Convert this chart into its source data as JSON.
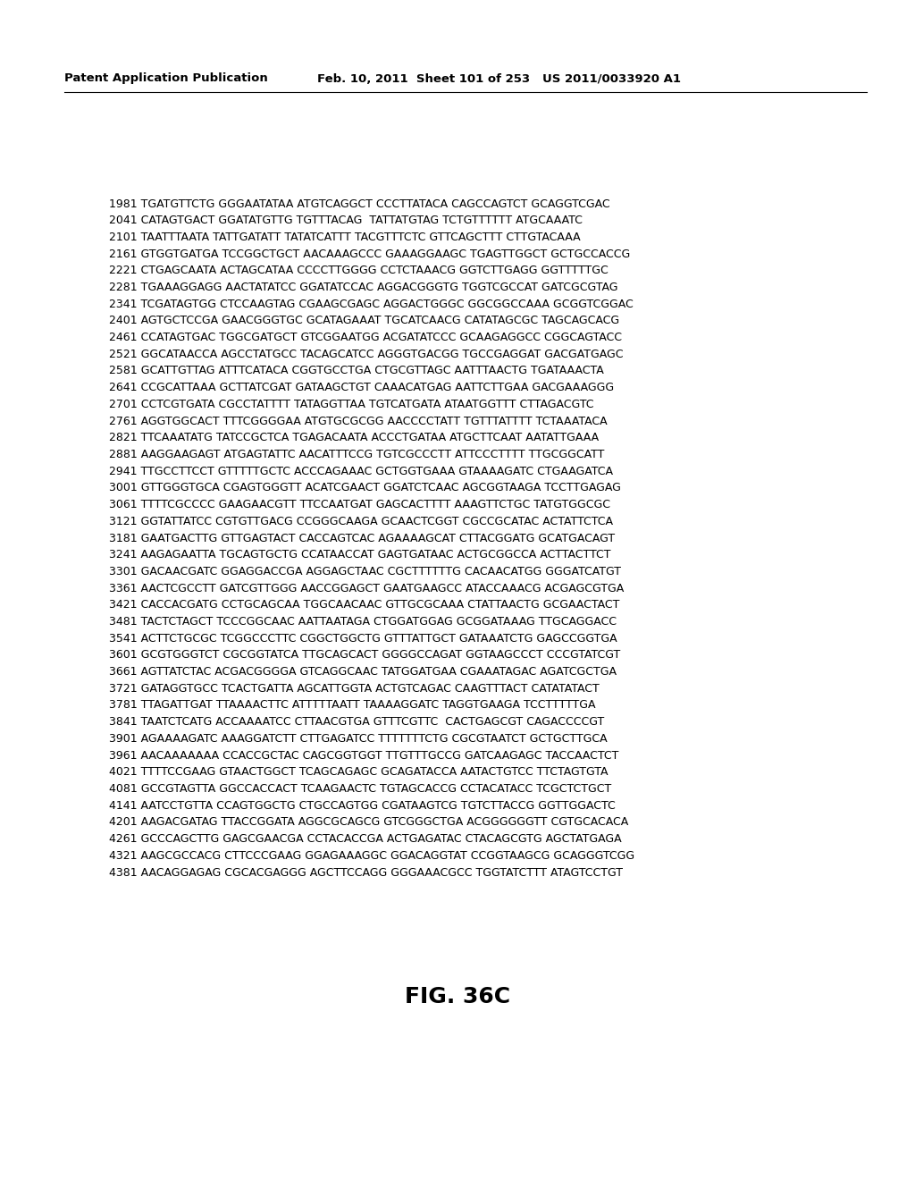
{
  "header_left": "Patent Application Publication",
  "header_middle": "Feb. 10, 2011  Sheet 101 of 253   US 2011/0033920 A1",
  "figure_label": "FIG. 36C",
  "background_color": "#ffffff",
  "text_color": "#000000",
  "sequence_lines": [
    "1981 TGATGTTCTG GGGAATATAA ATGTCAGGCT CCCTTATACA CAGCCAGTCT GCAGGTCGAC",
    "2041 CATAGTGACT GGATATGTTG TGTTTACAG  TATTATGTAG TCTGTTTTTT ATGCAAATC",
    "2101 TAATTTAATA TATTGATATT TATATCATTT TACGTTTCTC GTTCAGCTTT CTTGTACAAA",
    "2161 GTGGTGATGA TCCGGCTGCT AACAAAGCCC GAAAGGAAGC TGAGTTGGCT GCTGCCACCG",
    "2221 CTGAGCAATA ACTAGCATAA CCCCTTGGGG CCTCTAAACG GGTCTTGAGG GGTTTTTGC",
    "2281 TGAAAGGAGG AACTATATCC GGATATCCAC AGGACGGGTG TGGTCGCCAT GATCGCGTAG",
    "2341 TCGATAGTGG CTCCAAGTAG CGAAGCGAGC AGGACTGGGC GGCGGCCAAA GCGGTCGGAC",
    "2401 AGTGCTCCGA GAACGGGTGC GCATAGAAAT TGCATCAACG CATATAGCGC TAGCAGCACG",
    "2461 CCATAGTGAC TGGCGATGCT GTCGGAATGG ACGATATCCC GCAAGAGGCC CGGCAGTACC",
    "2521 GGCATAACCA AGCCTATGCC TACAGCATCC AGGGTGACGG TGCCGAGGAT GACGATGAGC",
    "2581 GCATTGTTAG ATTTCATACA CGGTGCCTGA CTGCGTTAGC AATTTAACTG TGATAAACTA",
    "2641 CCGCATTAAA GCTTATCGAT GATAAGCTGT CAAACATGAG AATTCTTGAA GACGAAAGGG",
    "2701 CCTCGTGATA CGCCTATTTT TATAGGTTAA TGTCATGATA ATAATGGTTT CTTAGACGTC",
    "2761 AGGTGGCACT TTTCGGGGAA ATGTGCGCGG AACCCCTATT TGTTTATTTT TCTAAATACA",
    "2821 TTCAAATATG TATCCGCTCA TGAGACAATA ACCCTGATAA ATGCTTCAAT AATATTGAAA",
    "2881 AAGGAAGAGT ATGAGTATTC AACATTTCCG TGTCGCCCTT ATTCCCTTTT TTGCGGCATT",
    "2941 TTGCCTTCCT GTTTTTGCTC ACCCAGAAAC GCTGGTGAAA GTAAAAGATC CTGAAGATCA",
    "3001 GTTGGGTGCA CGAGTGGGTT ACATCGAACT GGATCTCAAC AGCGGTAAGA TCCTTGAGAG",
    "3061 TTTTCGCCCC GAAGAACGTT TTCCAATGAT GAGCACTTTT AAAGTTCTGC TATGTGGCGC",
    "3121 GGTATTATCC CGTGTTGACG CCGGGCAAGA GCAACTCGGT CGCCGCATAC ACTATTCTCA",
    "3181 GAATGACTTG GTTGAGTACT CACCAGTCAC AGAAAAGCAT CTTACGGATG GCATGACAGT",
    "3241 AAGAGAATTA TGCAGTGCTG CCATAACCAT GAGTGATAAC ACTGCGGCCA ACTTACTTCT",
    "3301 GACAACGATC GGAGGACCGA AGGAGCTAAC CGCTTTTTTG CACAACATGG GGGATCATGT",
    "3361 AACTCGCCTT GATCGTTGGG AACCGGAGCT GAATGAAGCC ATACCAAACG ACGAGCGTGA",
    "3421 CACCACGATG CCTGCAGCAA TGGCAACAAC GTTGCGCAAA CTATTAACTG GCGAACTACT",
    "3481 TACTCTAGCT TCCCGGCAAC AATTAATAGA CTGGATGGAG GCGGATAAAG TTGCAGGACC",
    "3541 ACTTCTGCGC TCGGCCCTTC CGGCTGGCTG GTTTATTGCT GATAAATCTG GAGCCGGTGA",
    "3601 GCGTGGGTCT CGCGGTATCA TTGCAGCACT GGGGCCAGAT GGTAAGCCCT CCCGTATCGT",
    "3661 AGTTATCTAC ACGACGGGGA GTCAGGCAAC TATGGATGAA CGAAATAGAC AGATCGCTGA",
    "3721 GATAGGTGCC TCACTGATTA AGCATTGGTA ACTGTCAGAC CAAGTTTACT CATATATACT",
    "3781 TTAGATTGAT TTAAAACTTC ATTTTTAATT TAAAAGGATC TAGGTGAAGA TCCTTTTTGA",
    "3841 TAATCTCATG ACCAAAATCC CTTAACGTGA GTTTCGTTC  CACTGAGCGT CAGACCCCGT",
    "3901 AGAAAAGATC AAAGGATCTT CTTGAGATCC TTTTTTTCTG CGCGTAATCT GCTGCTTGCA",
    "3961 AACAAAAAAA CCACCGCTAC CAGCGGTGGT TTGTTTGCCG GATCAAGAGC TACCAACTCT",
    "4021 TTTTCCGAAG GTAACTGGCT TCAGCAGAGC GCAGATACCA AATACTGTCC TTCTAGTGTA",
    "4081 GCCGTAGTTA GGCCACCACT TCAAGAACTC TGTAGCACCG CCTACATACC TCGCTCTGCT",
    "4141 AATCCTGTTA CCAGTGGCTG CTGCCAGTGG CGATAAGTCG TGTCTTACCG GGTTGGACTC",
    "4201 AAGACGATAG TTACCGGATA AGGCGCAGCG GTCGGGCTGA ACGGGGGGTT CGTGCACACA",
    "4261 GCCCAGCTTG GAGCGAACGA CCTACACCGA ACTGAGATAC CTACAGCGTG AGCTATGAGA",
    "4321 AAGCGCCACG CTTCCCGAAG GGAGAAAGGC GGACAGGTAT CCGGTAAGCG GCAGGGTCGG",
    "4381 AACAGGAGAG CGCACGAGGG AGCTTCCAGG GGGAAACGCC TGGTATCTTT ATAGTCCTGT"
  ],
  "header_fontsize": 9.5,
  "seq_fontsize": 9.0,
  "fig_label_fontsize": 18
}
